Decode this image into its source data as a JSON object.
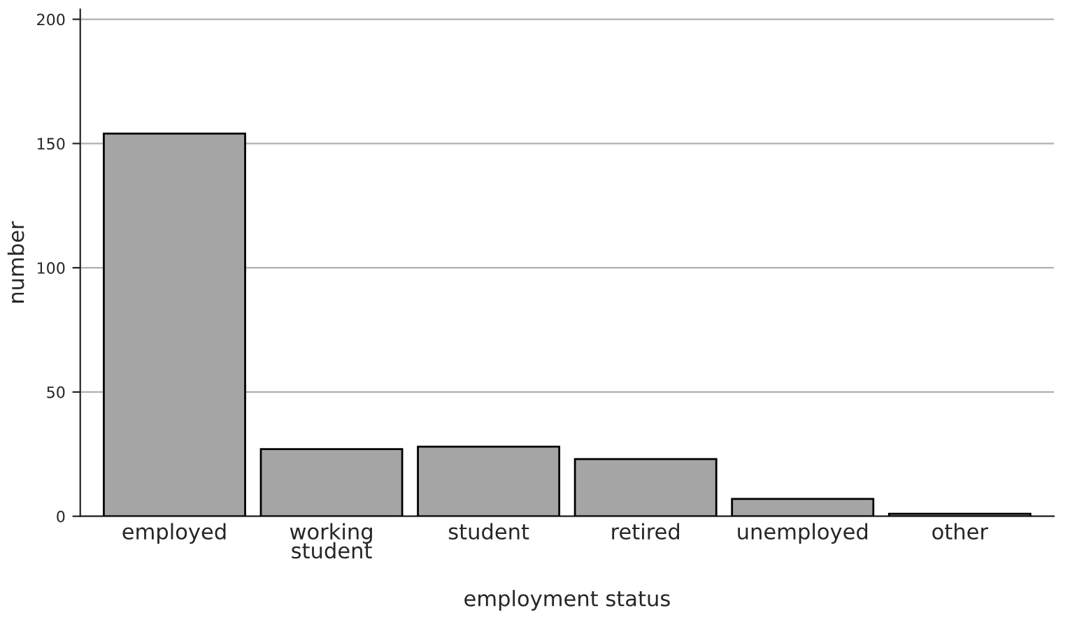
{
  "chart_data": {
    "type": "bar",
    "xlabel": "employment status",
    "ylabel": "number",
    "categories": [
      "employed",
      "working\nstudent",
      "student",
      "retired",
      "unemployed",
      "other"
    ],
    "values": [
      154,
      27,
      28,
      23,
      7,
      1
    ],
    "color": "#a5a5a5",
    "ylim": [
      0,
      204
    ],
    "yticks": [
      0,
      50,
      100,
      150,
      200
    ],
    "grid": "y"
  }
}
